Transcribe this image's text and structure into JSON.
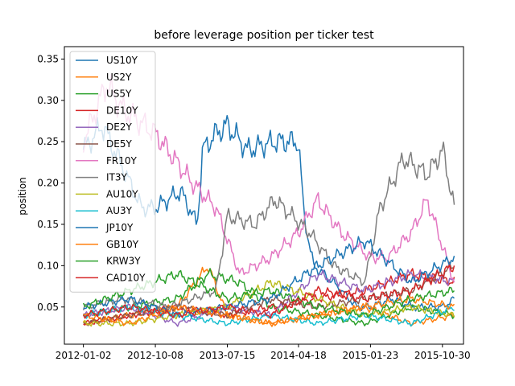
{
  "chart_data": {
    "type": "line",
    "title": "before leverage position per ticker test",
    "xlabel": "",
    "ylabel": "position",
    "x_axis": {
      "type": "date",
      "range": [
        "2011-10-20",
        "2016-01-20"
      ],
      "ticks": [
        "2012-01-02",
        "2012-10-08",
        "2013-07-15",
        "2014-04-18",
        "2015-01-23",
        "2015-10-30"
      ]
    },
    "y_axis": {
      "range": [
        0.005,
        0.365
      ],
      "ticks": [
        0.05,
        0.1,
        0.15,
        0.2,
        0.25,
        0.3,
        0.35
      ],
      "tick_labels": [
        "0.05",
        "0.10",
        "0.15",
        "0.20",
        "0.25",
        "0.30",
        "0.35"
      ]
    },
    "grid": false,
    "legend_position": "upper-left",
    "series": [
      {
        "name": "US10Y",
        "color": "#1f77b4",
        "x": [
          "2012-01-02",
          "2012-03-15",
          "2012-06-01",
          "2012-08-15",
          "2012-10-08",
          "2013-01-15",
          "2013-03-20",
          "2013-04-10",
          "2013-06-01",
          "2013-07-15",
          "2013-10-01",
          "2014-01-15",
          "2014-04-18",
          "2014-05-10",
          "2014-06-15",
          "2014-09-01",
          "2014-12-01",
          "2015-01-23",
          "2015-04-15",
          "2015-07-15",
          "2015-10-30",
          "2015-12-15"
        ],
        "values": [
          0.24,
          0.27,
          0.22,
          0.17,
          0.17,
          0.19,
          0.15,
          0.24,
          0.26,
          0.27,
          0.24,
          0.25,
          0.25,
          0.16,
          0.1,
          0.08,
          0.05,
          0.05,
          0.06,
          0.05,
          0.05,
          0.06
        ]
      },
      {
        "name": "US2Y",
        "color": "#ff7f0e",
        "x": [
          "2012-01-02",
          "2012-07-01",
          "2013-01-01",
          "2013-05-01",
          "2013-07-15",
          "2014-01-01",
          "2014-07-01",
          "2015-01-01",
          "2015-07-01",
          "2015-12-15"
        ],
        "values": [
          0.03,
          0.04,
          0.05,
          0.1,
          0.04,
          0.03,
          0.04,
          0.05,
          0.03,
          0.04
        ]
      },
      {
        "name": "US5Y",
        "color": "#2ca02c",
        "x": [
          "2012-01-02",
          "2012-07-01",
          "2013-01-01",
          "2013-05-01",
          "2013-09-01",
          "2014-01-01",
          "2014-07-01",
          "2015-01-01",
          "2015-07-01",
          "2015-12-15"
        ],
        "values": [
          0.04,
          0.05,
          0.06,
          0.09,
          0.08,
          0.05,
          0.04,
          0.03,
          0.05,
          0.04
        ]
      },
      {
        "name": "DE10Y",
        "color": "#d62728",
        "x": [
          "2012-01-02",
          "2012-07-01",
          "2013-01-01",
          "2013-07-15",
          "2014-01-01",
          "2014-07-01",
          "2015-01-01",
          "2015-07-01",
          "2015-12-15"
        ],
        "values": [
          0.03,
          0.04,
          0.05,
          0.04,
          0.05,
          0.06,
          0.07,
          0.09,
          0.08
        ]
      },
      {
        "name": "DE2Y",
        "color": "#9467bd",
        "x": [
          "2012-01-02",
          "2012-07-01",
          "2013-01-01",
          "2013-07-15",
          "2014-01-01",
          "2014-07-01",
          "2015-01-01",
          "2015-07-01",
          "2015-12-15"
        ],
        "values": [
          0.04,
          0.05,
          0.03,
          0.05,
          0.04,
          0.09,
          0.07,
          0.09,
          0.08
        ]
      },
      {
        "name": "DE5Y",
        "color": "#8c564b",
        "x": [
          "2012-01-02",
          "2012-07-01",
          "2013-01-01",
          "2013-07-15",
          "2014-01-01",
          "2014-07-01",
          "2015-01-01",
          "2015-07-01",
          "2015-12-15"
        ],
        "values": [
          0.03,
          0.04,
          0.05,
          0.04,
          0.06,
          0.05,
          0.06,
          0.07,
          0.1
        ]
      },
      {
        "name": "FR10Y",
        "color": "#e377c2",
        "x": [
          "2012-01-02",
          "2012-04-01",
          "2012-06-01",
          "2012-10-08",
          "2013-03-01",
          "2013-06-01",
          "2013-09-01",
          "2014-01-01",
          "2014-04-18",
          "2014-07-01",
          "2014-10-01",
          "2015-01-23",
          "2015-04-01",
          "2015-07-01",
          "2015-09-01",
          "2015-12-15"
        ],
        "values": [
          0.25,
          0.32,
          0.29,
          0.26,
          0.2,
          0.17,
          0.09,
          0.11,
          0.14,
          0.18,
          0.14,
          0.11,
          0.11,
          0.14,
          0.18,
          0.08
        ]
      },
      {
        "name": "IT3Y",
        "color": "#7f7f7f",
        "x": [
          "2012-01-02",
          "2012-06-01",
          "2012-12-01",
          "2013-06-01",
          "2013-07-15",
          "2013-11-01",
          "2014-01-15",
          "2014-06-01",
          "2014-09-01",
          "2015-01-01",
          "2015-03-01",
          "2015-06-01",
          "2015-09-01",
          "2015-11-01",
          "2015-12-15"
        ],
        "values": [
          0.05,
          0.06,
          0.05,
          0.07,
          0.16,
          0.15,
          0.18,
          0.14,
          0.1,
          0.08,
          0.17,
          0.23,
          0.21,
          0.24,
          0.17
        ]
      },
      {
        "name": "AU10Y",
        "color": "#bcbd22",
        "x": [
          "2012-01-02",
          "2012-07-01",
          "2013-01-01",
          "2013-07-15",
          "2014-01-01",
          "2014-07-01",
          "2015-01-01",
          "2015-07-01",
          "2015-12-15"
        ],
        "values": [
          0.03,
          0.03,
          0.04,
          0.05,
          0.08,
          0.06,
          0.04,
          0.05,
          0.04
        ]
      },
      {
        "name": "AU3Y",
        "color": "#17becf",
        "x": [
          "2012-01-02",
          "2012-07-01",
          "2013-01-01",
          "2013-07-15",
          "2014-01-01",
          "2014-07-01",
          "2015-01-01",
          "2015-07-01",
          "2015-12-15"
        ],
        "values": [
          0.04,
          0.05,
          0.04,
          0.03,
          0.04,
          0.03,
          0.04,
          0.03,
          0.05
        ]
      },
      {
        "name": "JP10Y",
        "color": "#1f77b4",
        "x": [
          "2012-01-02",
          "2012-07-01",
          "2013-01-01",
          "2013-07-15",
          "2014-01-01",
          "2014-07-01",
          "2015-01-01",
          "2015-07-01",
          "2015-12-15"
        ],
        "values": [
          0.05,
          0.06,
          0.04,
          0.05,
          0.06,
          0.1,
          0.13,
          0.08,
          0.11
        ]
      },
      {
        "name": "GB10Y",
        "color": "#ff7f0e",
        "x": [
          "2012-01-02",
          "2012-07-01",
          "2013-01-01",
          "2013-07-15",
          "2014-01-01",
          "2014-07-01",
          "2015-01-01",
          "2015-07-01",
          "2015-12-15"
        ],
        "values": [
          0.04,
          0.03,
          0.05,
          0.04,
          0.03,
          0.04,
          0.05,
          0.06,
          0.05
        ]
      },
      {
        "name": "KRW3Y",
        "color": "#2ca02c",
        "x": [
          "2012-01-02",
          "2012-07-01",
          "2013-01-01",
          "2013-07-15",
          "2014-01-01",
          "2014-07-01",
          "2015-01-01",
          "2015-07-01",
          "2015-12-15"
        ],
        "values": [
          0.05,
          0.07,
          0.09,
          0.06,
          0.07,
          0.05,
          0.04,
          0.06,
          0.07
        ]
      },
      {
        "name": "CAD10Y",
        "color": "#d62728",
        "x": [
          "2012-01-02",
          "2012-07-01",
          "2013-01-01",
          "2013-07-15",
          "2014-01-01",
          "2014-07-01",
          "2015-01-01",
          "2015-07-01",
          "2015-12-15"
        ],
        "values": [
          0.04,
          0.05,
          0.04,
          0.05,
          0.04,
          0.07,
          0.06,
          0.07,
          0.1
        ]
      }
    ]
  }
}
